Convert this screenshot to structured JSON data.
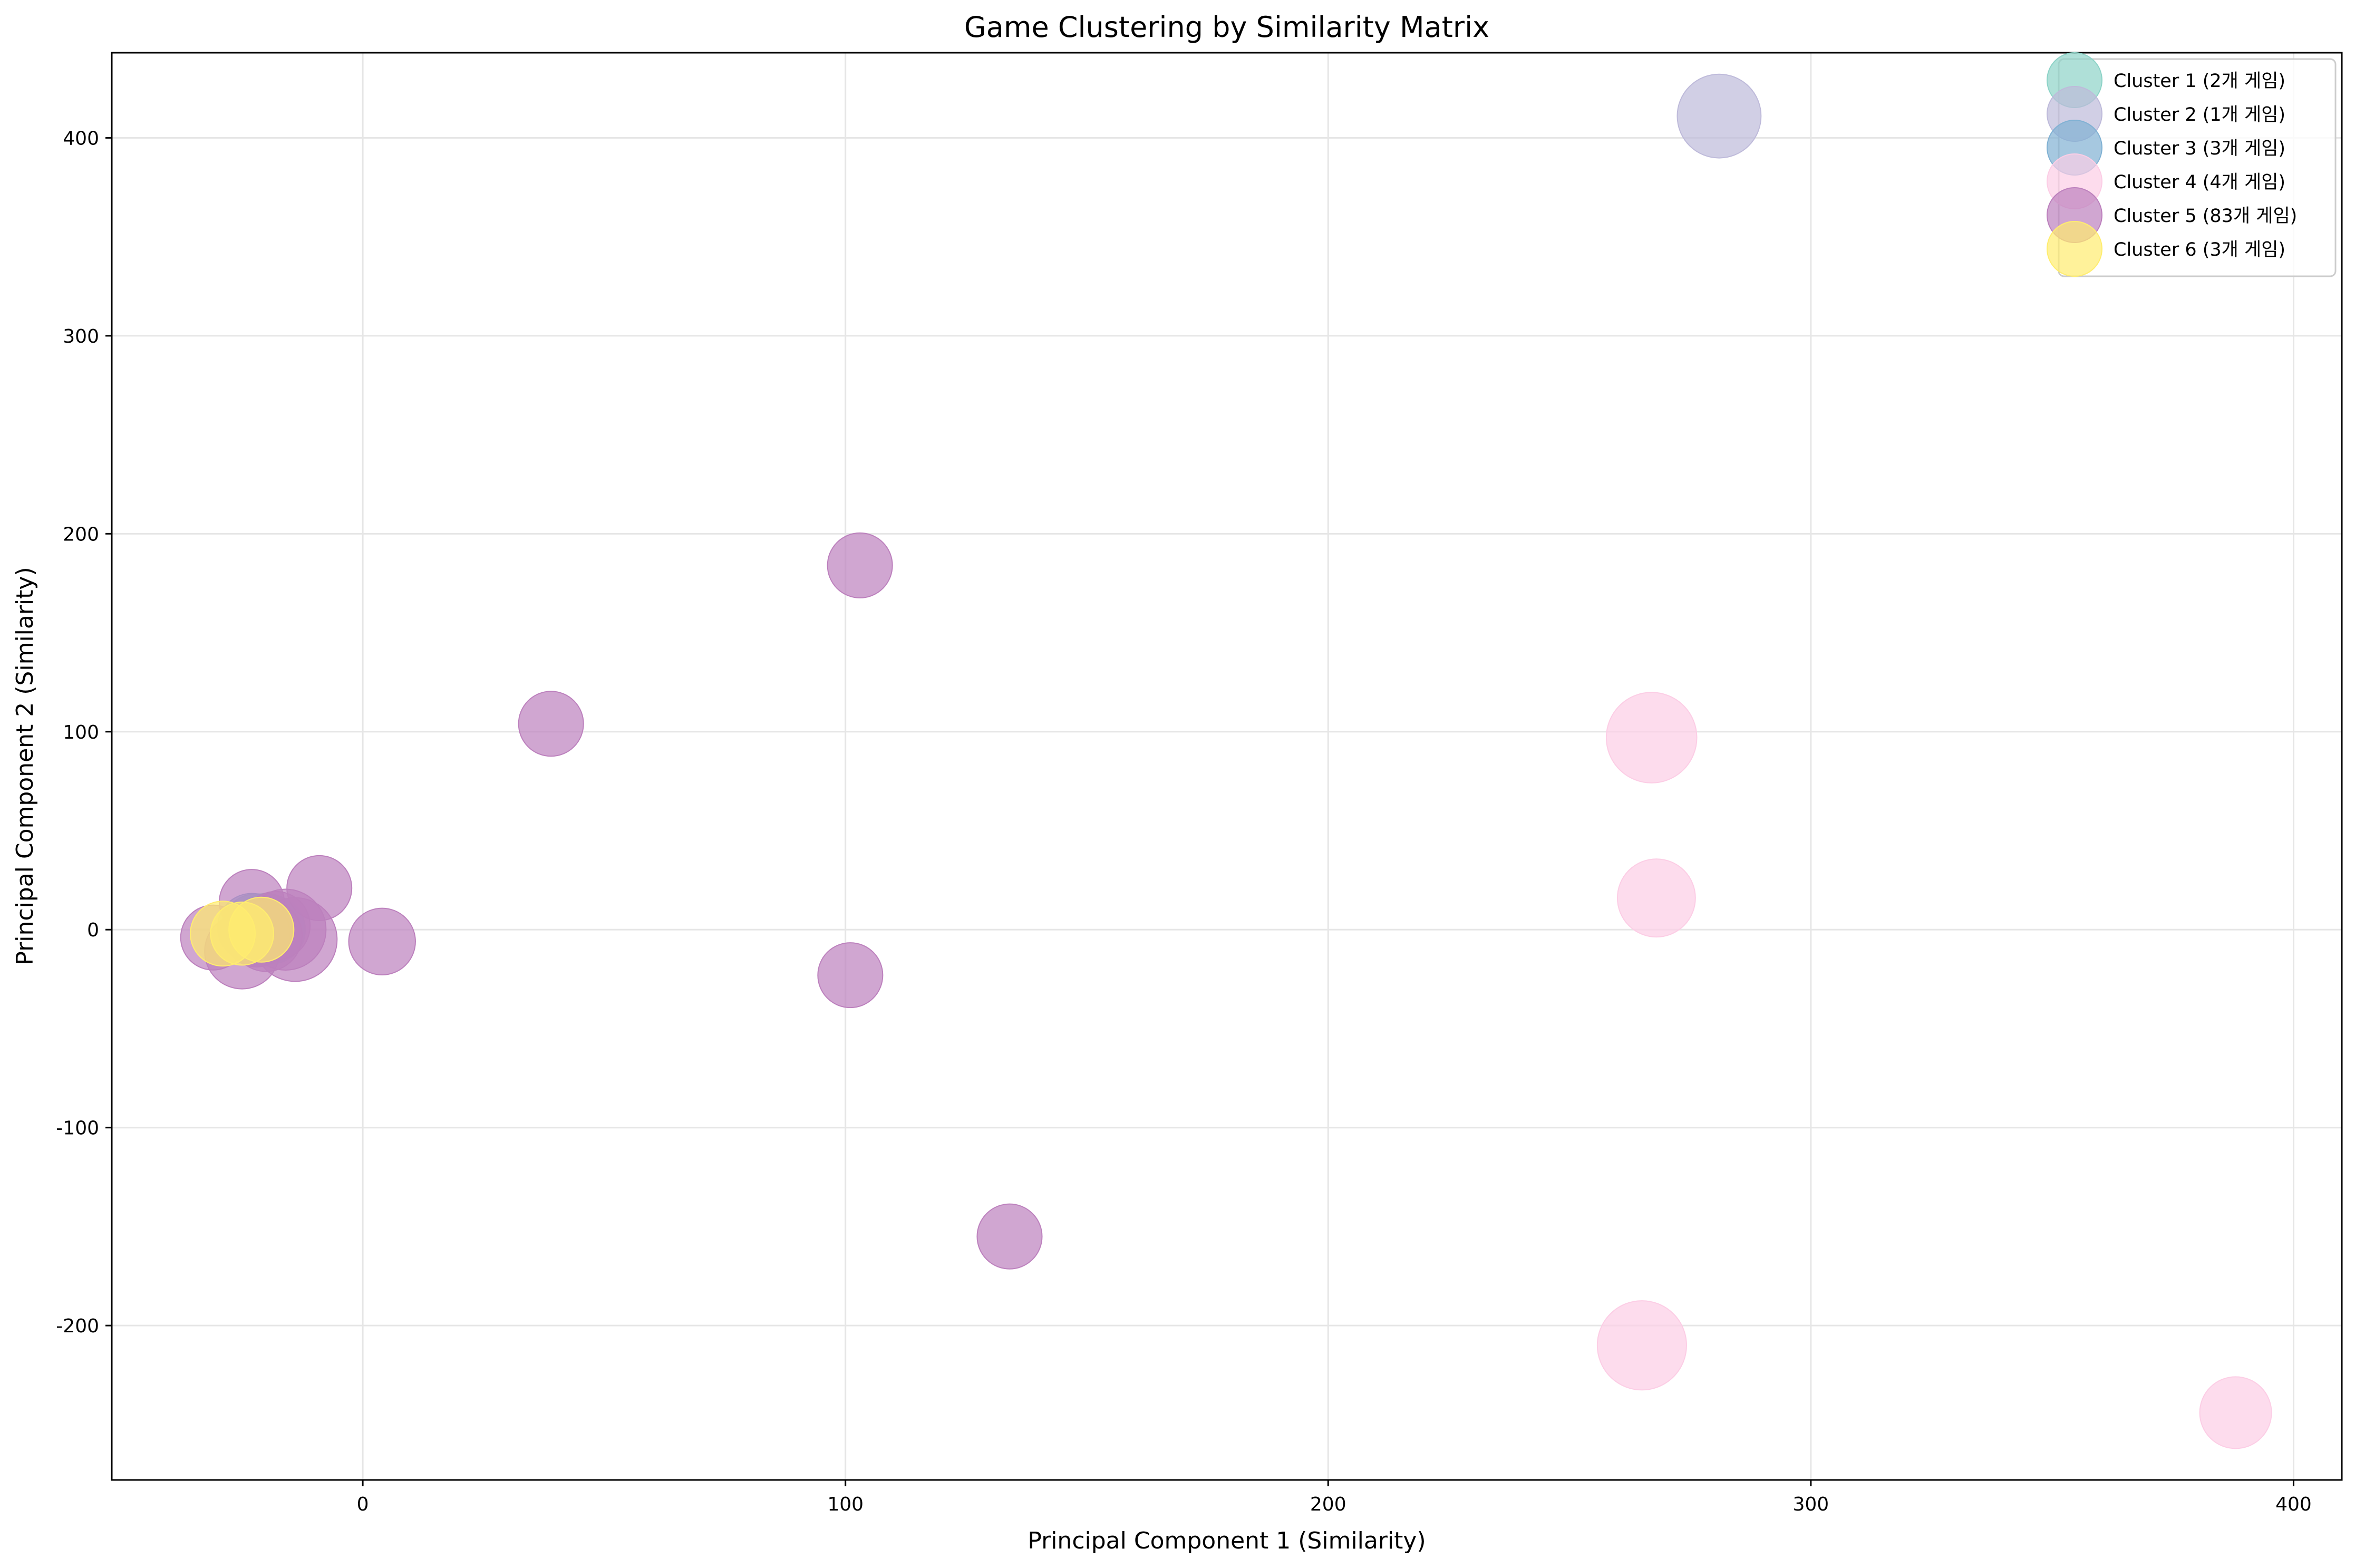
{
  "chart_data": {
    "type": "scatter",
    "title": "Game Clustering by Similarity Matrix",
    "xlabel": "Principal Component 1 (Similarity)",
    "ylabel": "Principal Component 2 (Similarity)",
    "xlim": [
      -52,
      410
    ],
    "ylim": [
      -278,
      443
    ],
    "xticks": [
      0,
      100,
      200,
      300,
      400
    ],
    "yticks": [
      -200,
      -100,
      0,
      100,
      200,
      300,
      400
    ],
    "grid": true,
    "legend_position": "top-right",
    "series": [
      {
        "name": "Cluster 1 (2개 게임)",
        "color": "#8dd3c7",
        "points": [
          {
            "x": -22,
            "y": 0,
            "size": 2200
          },
          {
            "x": -20,
            "y": 1,
            "size": 2000
          }
        ]
      },
      {
        "name": "Cluster 2 (1개 게임)",
        "color": "#bebada",
        "points": [
          {
            "x": 281,
            "y": 411,
            "size": 3000
          }
        ]
      },
      {
        "name": "Cluster 3 (3개 게임)",
        "color": "#80b1d3",
        "points": [
          {
            "x": -21,
            "y": -1,
            "size": 2000
          },
          {
            "x": -19,
            "y": 0,
            "size": 2000
          },
          {
            "x": -23,
            "y": 1,
            "size": 2000
          }
        ]
      },
      {
        "name": "Cluster 4 (4개 게임)",
        "color": "#fccde5",
        "points": [
          {
            "x": 267,
            "y": 97,
            "size": 3500
          },
          {
            "x": 268,
            "y": 16,
            "size": 2600
          },
          {
            "x": 265,
            "y": -210,
            "size": 3400
          },
          {
            "x": 388,
            "y": -244,
            "size": 2200
          }
        ]
      },
      {
        "name": "Cluster 5 (83개 게임)",
        "color": "#bc80bd",
        "points": [
          {
            "x": 103,
            "y": 184,
            "size": 1800
          },
          {
            "x": 39,
            "y": 104,
            "size": 1800
          },
          {
            "x": -9,
            "y": 21,
            "size": 1800
          },
          {
            "x": -23,
            "y": 14,
            "size": 1800
          },
          {
            "x": 4,
            "y": -6,
            "size": 1900
          },
          {
            "x": 101,
            "y": -23,
            "size": 1800
          },
          {
            "x": 134,
            "y": -155,
            "size": 1800
          },
          {
            "x": -14,
            "y": -5,
            "size": 3000
          },
          {
            "x": -16,
            "y": 0,
            "size": 2800
          },
          {
            "x": -25,
            "y": -11,
            "size": 2400
          },
          {
            "x": -20,
            "y": -3,
            "size": 2200
          },
          {
            "x": -31,
            "y": -4,
            "size": 1800
          },
          {
            "x": -18,
            "y": 2,
            "size": 2000
          },
          {
            "x": -22,
            "y": -2,
            "size": 1900
          }
        ]
      },
      {
        "name": "Cluster 6 (3개 게임)",
        "color": "#ffed6f",
        "points": [
          {
            "x": -29,
            "y": -2,
            "size": 1800
          },
          {
            "x": -21,
            "y": 0,
            "size": 1800
          },
          {
            "x": -25,
            "y": -2,
            "size": 1700
          }
        ]
      }
    ]
  }
}
